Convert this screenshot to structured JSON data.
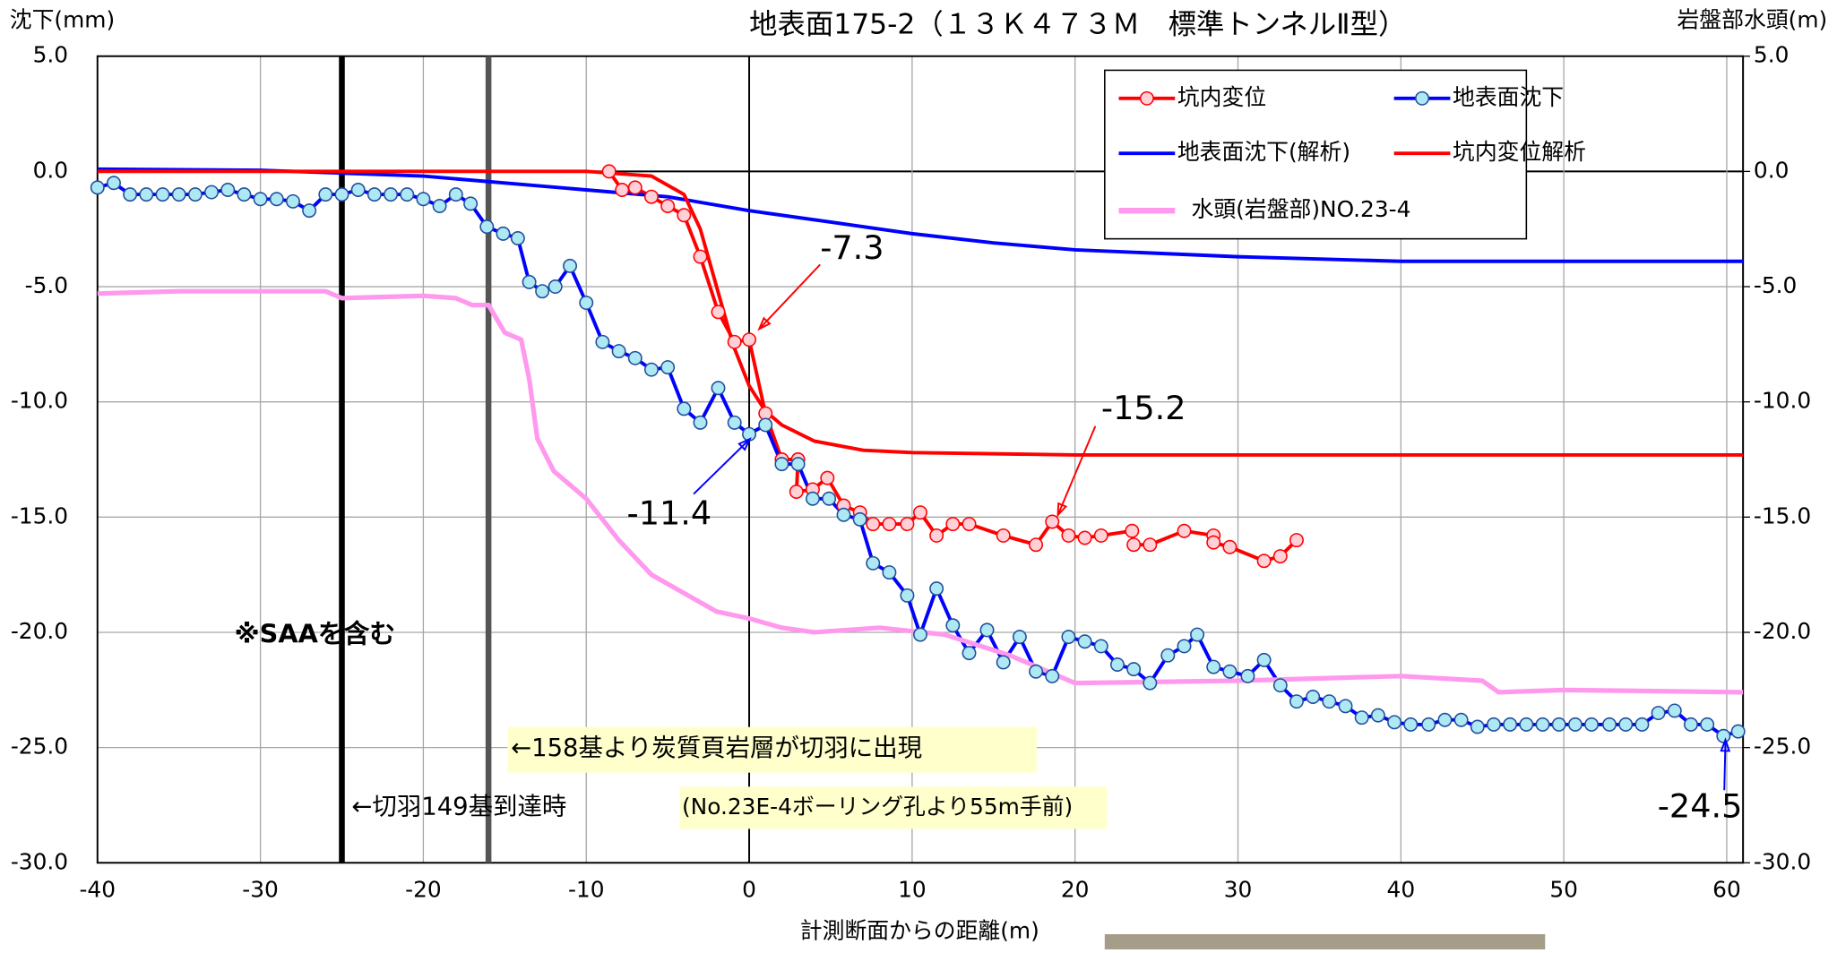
{
  "chart_data": {
    "type": "line",
    "title": "地表面175-2（１３Ｋ４７３Ｍ　標準トンネルⅡ型）",
    "y_label": "沈下(mm)",
    "y2_label": "岩盤部水頭(m)",
    "x_label": "計測断面からの距離(m)",
    "xlim": [
      -40,
      61
    ],
    "ylim": [
      -30,
      5
    ],
    "y2lim": [
      -30,
      5
    ],
    "xticks": [
      -40,
      -30,
      -20,
      -10,
      0,
      10,
      20,
      30,
      40,
      50,
      60
    ],
    "yticks": [
      {
        "value": 5,
        "label": "5.0"
      },
      {
        "value": 0,
        "label": "0.0"
      },
      {
        "value": -5,
        "label": "-5.0"
      },
      {
        "value": -10,
        "label": "-10.0"
      },
      {
        "value": -15,
        "label": "-15.0"
      },
      {
        "value": -20,
        "label": "-20.0"
      },
      {
        "value": -25,
        "label": "-25.0"
      },
      {
        "value": -30,
        "label": "-30.0"
      }
    ],
    "y2ticks": [
      {
        "value": 5,
        "label": "5.0"
      },
      {
        "value": 0,
        "label": "0.0"
      },
      {
        "value": -5,
        "label": "-5.0"
      },
      {
        "value": -10,
        "label": "-10.0"
      },
      {
        "value": -15,
        "label": "-15.0"
      },
      {
        "value": -20,
        "label": "-20.0"
      },
      {
        "value": -25,
        "label": "-25.0"
      },
      {
        "value": -30,
        "label": "-30.0"
      }
    ],
    "grid": true,
    "reference_lines": [
      {
        "x": -25,
        "color": "#000000"
      },
      {
        "x": -16,
        "color": "#555555"
      },
      {
        "x": 0,
        "color": "#000000"
      }
    ],
    "series": [
      {
        "name": "坑内変位",
        "color": "#ff0000",
        "marker_fill": "#ffd0d8",
        "markers": true,
        "x": [
          -8.6,
          -7.8,
          -7.0,
          -6.0,
          -5.0,
          -4.0,
          -3.0,
          -1.9,
          -0.9,
          0,
          1.0,
          2.0,
          3.0,
          2.9,
          3.9,
          4.8,
          5.8,
          6.8,
          7.6,
          8.6,
          9.7,
          10.5,
          11.5,
          12.5,
          13.5,
          15.6,
          17.6,
          18.6,
          19.6,
          20.6,
          21.6,
          23.5,
          23.6,
          24.6,
          26.7,
          28.5,
          28.5,
          29.5,
          31.6,
          32.6,
          33.6
        ],
        "values": [
          0.0,
          -0.8,
          -0.7,
          -1.1,
          -1.5,
          -1.9,
          -3.7,
          -6.1,
          -7.4,
          -7.3,
          -10.5,
          -12.5,
          -12.5,
          -13.9,
          -13.8,
          -13.3,
          -14.5,
          -14.8,
          -15.3,
          -15.3,
          -15.3,
          -14.8,
          -15.8,
          -15.3,
          -15.3,
          -15.8,
          -16.2,
          -15.2,
          -15.8,
          -15.9,
          -15.8,
          -15.6,
          -16.2,
          -16.2,
          -15.6,
          -15.8,
          -16.1,
          -16.3,
          -16.9,
          -16.7,
          -16.0
        ]
      },
      {
        "name": "地表面沈下",
        "color": "#0000ff",
        "marker_fill": "#aee8f5",
        "markers": true,
        "x": [
          -40,
          -39,
          -38,
          -37,
          -36,
          -35,
          -34,
          -33,
          -32,
          -31,
          -30,
          -29,
          -28,
          -27,
          -26,
          -25,
          -24,
          -23,
          -22,
          -21,
          -20,
          -19,
          -18,
          -17.1,
          -16.1,
          -15.1,
          -14.2,
          -13.5,
          -12.7,
          -11.9,
          -11.0,
          -10.0,
          -9.0,
          -8.0,
          -7.0,
          -6.0,
          -5.0,
          -4.0,
          -3.0,
          -1.9,
          -0.9,
          0,
          1.0,
          2.0,
          3.0,
          3.9,
          4.9,
          5.8,
          6.8,
          7.6,
          8.6,
          9.7,
          10.5,
          11.5,
          12.5,
          13.5,
          14.6,
          15.6,
          16.6,
          17.6,
          18.6,
          19.6,
          20.6,
          21.6,
          22.6,
          23.6,
          24.6,
          25.7,
          26.7,
          27.5,
          28.5,
          29.5,
          30.6,
          31.6,
          32.6,
          33.6,
          34.6,
          35.6,
          36.6,
          37.6,
          38.6,
          39.6,
          40.6,
          41.7,
          42.7,
          43.7,
          44.7,
          45.7,
          46.7,
          47.7,
          48.7,
          49.7,
          50.7,
          51.7,
          52.8,
          53.8,
          54.8,
          55.8,
          56.8,
          57.8,
          58.8,
          59.8,
          60.7
        ],
        "values": [
          -0.7,
          -0.5,
          -1.0,
          -1.0,
          -1.0,
          -1.0,
          -1.0,
          -0.9,
          -0.8,
          -1.0,
          -1.2,
          -1.2,
          -1.3,
          -1.7,
          -1.0,
          -1.0,
          -0.8,
          -1.0,
          -1.0,
          -1.0,
          -1.2,
          -1.5,
          -1.0,
          -1.4,
          -2.4,
          -2.7,
          -2.9,
          -4.8,
          -5.2,
          -5.0,
          -4.1,
          -5.7,
          -7.4,
          -7.8,
          -8.1,
          -8.6,
          -8.5,
          -10.3,
          -10.9,
          -9.4,
          -10.9,
          -11.4,
          -11.0,
          -12.7,
          -12.7,
          -14.2,
          -14.2,
          -14.9,
          -15.1,
          -17.0,
          -17.4,
          -18.4,
          -20.1,
          -18.1,
          -19.7,
          -20.9,
          -19.9,
          -21.3,
          -20.2,
          -21.7,
          -21.9,
          -20.2,
          -20.4,
          -20.6,
          -21.4,
          -21.6,
          -22.2,
          -21.0,
          -20.6,
          -20.1,
          -21.5,
          -21.7,
          -21.9,
          -21.2,
          -22.3,
          -23.0,
          -22.8,
          -23.0,
          -23.2,
          -23.7,
          -23.6,
          -23.9,
          -24.0,
          -24.0,
          -23.8,
          -23.8,
          -24.1,
          -24.0,
          -24.0,
          -24.0,
          -24.0,
          -24.0,
          -24.0,
          -24.0,
          -24.0,
          -24.0,
          -24.0,
          -23.5,
          -23.4,
          -24.0,
          -24.0,
          -24.5,
          -24.3
        ]
      },
      {
        "name": "地表面沈下(解析)",
        "color": "#0000ff",
        "markers": false,
        "x": [
          -40,
          -30,
          -20,
          -10,
          -5,
          0,
          5,
          10,
          15,
          20,
          30,
          40,
          50,
          61
        ],
        "values": [
          0.1,
          0.05,
          -0.2,
          -0.8,
          -1.1,
          -1.7,
          -2.2,
          -2.7,
          -3.1,
          -3.4,
          -3.7,
          -3.9,
          -3.9,
          -3.9
        ]
      },
      {
        "name": "坑内変位解析",
        "color": "#ff0000",
        "markers": false,
        "x": [
          -40,
          -10,
          -6,
          -4,
          -3,
          -2,
          -1,
          0,
          1,
          2,
          4,
          7,
          10,
          20,
          61
        ],
        "values": [
          0,
          0,
          -0.2,
          -1.0,
          -2.5,
          -5,
          -7.5,
          -9.3,
          -10.4,
          -11.0,
          -11.7,
          -12.1,
          -12.2,
          -12.3,
          -12.3
        ]
      },
      {
        "name": "水頭(岩盤部)NO.23-4",
        "color": "#ff99ee",
        "markers": false,
        "axis": "y2",
        "x": [
          -40,
          -35,
          -26,
          -25,
          -20,
          -18,
          -17,
          -16,
          -15,
          -14,
          -13.5,
          -13,
          -12,
          -10,
          -8,
          -6,
          -4,
          -2,
          0,
          2,
          4,
          8,
          12,
          16,
          20,
          30,
          40,
          45,
          46,
          50,
          61
        ],
        "values": [
          -5.3,
          -5.2,
          -5.2,
          -5.5,
          -5.4,
          -5.5,
          -5.8,
          -5.8,
          -7.0,
          -7.3,
          -9,
          -11.6,
          -13,
          -14.2,
          -16,
          -17.5,
          -18.3,
          -19.1,
          -19.4,
          -19.8,
          -20.0,
          -19.8,
          -20.1,
          -21,
          -22.2,
          -22.1,
          -21.9,
          -22.1,
          -22.6,
          -22.5,
          -22.6
        ]
      }
    ],
    "annotations": [
      "-7.3",
      "-15.2",
      "-11.4",
      "-24.5",
      "※SAAを含む",
      "←158基より炭質頁岩層が切羽に出現",
      "←切羽149基到達時",
      "(No.23E-4ボーリング孔より55m手前)"
    ]
  }
}
